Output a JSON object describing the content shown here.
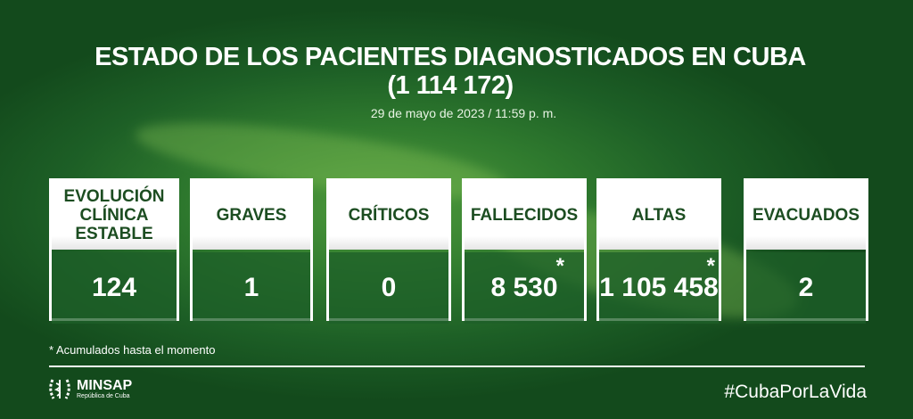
{
  "title": "ESTADO DE LOS PACIENTES DIAGNOSTICADOS EN CUBA",
  "total": "(1 114 172)",
  "date": "29 de mayo de 2023 / 11:59 p. m.",
  "cards": [
    {
      "label": "EVOLUCIÓN CLÍNICA ESTABLE",
      "value": "124",
      "asterisk": ""
    },
    {
      "label": "GRAVES",
      "value": "1",
      "asterisk": ""
    },
    {
      "label": "CRÍTICOS",
      "value": "0",
      "asterisk": ""
    },
    {
      "label": "FALLECIDOS",
      "value": "8 530",
      "asterisk": "*"
    },
    {
      "label": "ALTAS",
      "value": "1 105 458",
      "asterisk": "*"
    },
    {
      "label": "EVACUADOS",
      "value": "2",
      "asterisk": ""
    }
  ],
  "footnote": "* Acumulados hasta el momento",
  "logo": {
    "name": "MINSAP",
    "subtitle": "República de Cuba",
    "icon": "minsap-emblem-icon"
  },
  "hashtag": "#CubaPorLaVida",
  "colors": {
    "background": "#1d5f26",
    "text_dark": "#1c4d21"
  }
}
